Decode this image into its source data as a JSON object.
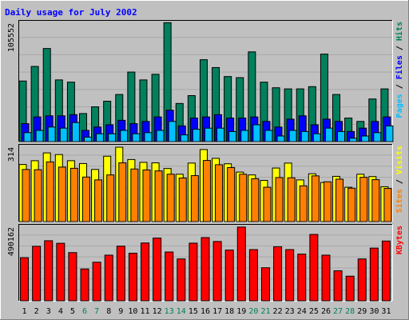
{
  "chart_data": {
    "type": "bar",
    "title": "Daily usage for July 2002",
    "categories": [
      "1",
      "2",
      "3",
      "4",
      "5",
      "6",
      "7",
      "8",
      "9",
      "10",
      "11",
      "12",
      "13",
      "14",
      "15",
      "16",
      "17",
      "18",
      "19",
      "20",
      "21",
      "22",
      "23",
      "24",
      "25",
      "26",
      "27",
      "28",
      "29",
      "30",
      "31"
    ],
    "weekend_days": [
      "6",
      "7",
      "13",
      "14",
      "20",
      "21",
      "27",
      "28"
    ],
    "grid": true,
    "colors": {
      "background": "#c0c0c0",
      "title": "#0000ff",
      "hits": "#00805c",
      "files": "#0000ff",
      "pages": "#00c0ff",
      "visits": "#ffff00",
      "sites": "#ff8000",
      "kbytes": "#ff0000",
      "weekday_label": "#000000",
      "weekend_label": "#00805c"
    },
    "panels": [
      {
        "id": "hits-files-pages",
        "max_label": "105552",
        "ylim": [
          0,
          105552
        ],
        "series": [
          {
            "name": "Hits",
            "values": [
              54000,
              67000,
              83000,
              55000,
              53000,
              25000,
              31000,
              36000,
              42000,
              62000,
              55000,
              60000,
              106000,
              34000,
              41000,
              73000,
              66000,
              58000,
              57000,
              80000,
              53000,
              48000,
              47000,
              47000,
              49000,
              78000,
              42000,
              21000,
              18000,
              38000,
              47000
            ]
          },
          {
            "name": "Files",
            "values": [
              16000,
              22000,
              23000,
              23000,
              24000,
              10000,
              13000,
              15000,
              19000,
              16000,
              18000,
              22000,
              28000,
              14000,
              21000,
              22000,
              24000,
              21000,
              21000,
              22000,
              18000,
              13000,
              20000,
              23000,
              15000,
              20000,
              18000,
              9000,
              12000,
              18000,
              22000
            ]
          },
          {
            "name": "Pages",
            "values": [
              8000,
              10000,
              13000,
              12000,
              17000,
              4000,
              7000,
              7000,
              10000,
              7000,
              8000,
              10000,
              18000,
              6000,
              11000,
              12000,
              12000,
              9000,
              10000,
              15000,
              10000,
              5000,
              10000,
              9000,
              7000,
              12000,
              9000,
              3000,
              5000,
              8000,
              14000
            ]
          }
        ],
        "legend": [
          "Pages",
          "Files",
          "Hits"
        ]
      },
      {
        "id": "visits-sites",
        "max_label": "314",
        "ylim": [
          0,
          314
        ],
        "series": [
          {
            "name": "Visits",
            "values": [
              241,
              257,
              290,
              283,
              257,
              245,
              220,
              276,
              314,
              262,
              250,
              248,
              224,
              200,
              247,
              304,
              267,
              244,
              209,
              197,
              174,
              226,
              247,
              176,
              202,
              165,
              191,
              145,
              200,
              190,
              147
            ]
          },
          {
            "name": "Sites",
            "values": [
              220,
              219,
              252,
              230,
              225,
              188,
              176,
              197,
              248,
              222,
              218,
              214,
              200,
              184,
              194,
              258,
              240,
              228,
              200,
              181,
              145,
              186,
              185,
              151,
              193,
              168,
              179,
              141,
              187,
              177,
              140
            ]
          }
        ],
        "legend": [
          "Sites",
          "Visits"
        ]
      },
      {
        "id": "kbytes",
        "max_label": "490162",
        "ylim": [
          0,
          490162
        ],
        "series": [
          {
            "name": "KBytes",
            "values": [
              287000,
              363000,
              400000,
              383000,
              321000,
              212000,
              257000,
              304000,
              364000,
              317000,
              385000,
              418000,
              325000,
              279000,
              384000,
              421000,
              395000,
              338000,
              491000,
              341000,
              220000,
              360000,
              341000,
              311000,
              442000,
              304000,
              200000,
              164000,
              279000,
              351000,
              398000
            ]
          }
        ],
        "legend": [
          "KBytes"
        ]
      }
    ]
  }
}
